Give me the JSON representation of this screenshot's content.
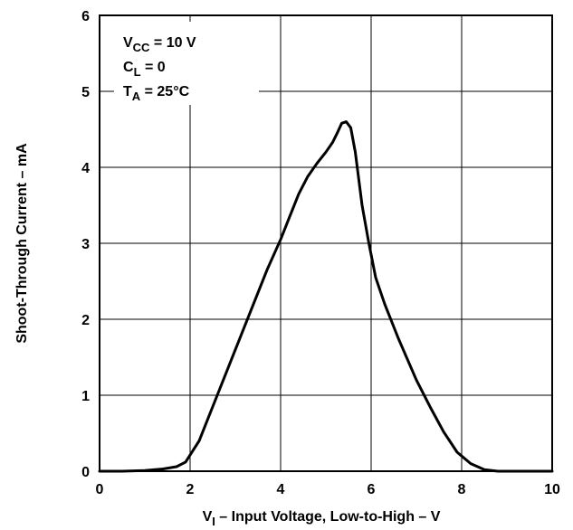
{
  "chart_data": {
    "type": "line",
    "title": "",
    "xlabel": {
      "prefix": "V",
      "sub": "I",
      "rest": " – Input Voltage, Low-to-High – V"
    },
    "ylabel": "Shoot-Through Current – mA",
    "xlim": [
      0,
      10
    ],
    "ylim": [
      0,
      6
    ],
    "xticks": [
      "0",
      "2",
      "4",
      "6",
      "8",
      "10"
    ],
    "yticks": [
      "0",
      "1",
      "2",
      "3",
      "4",
      "5",
      "6"
    ],
    "grid": true,
    "annotations": [
      {
        "main": "V",
        "sub": "CC",
        "rest": " = 10 V"
      },
      {
        "main": "C",
        "sub": "L",
        "rest": " = 0"
      },
      {
        "main": "T",
        "sub": "A",
        "rest": " = 25°C"
      }
    ],
    "series": [
      {
        "x": [
          0,
          0.5,
          1.0,
          1.4,
          1.7,
          1.9,
          2.2,
          2.6,
          3.0,
          3.4,
          3.7,
          4.0,
          4.2,
          4.4,
          4.6,
          4.8,
          5.0,
          5.15,
          5.25,
          5.35,
          5.45,
          5.55,
          5.65,
          5.8,
          5.95,
          6.1,
          6.3,
          6.6,
          7.0,
          7.3,
          7.6,
          7.9,
          8.2,
          8.5,
          8.8,
          9.2,
          10
        ],
        "y": [
          0,
          0,
          0.01,
          0.03,
          0.06,
          0.12,
          0.4,
          1.0,
          1.6,
          2.2,
          2.65,
          3.05,
          3.35,
          3.65,
          3.88,
          4.05,
          4.2,
          4.33,
          4.45,
          4.58,
          4.6,
          4.52,
          4.2,
          3.5,
          3.0,
          2.55,
          2.2,
          1.75,
          1.2,
          0.85,
          0.52,
          0.25,
          0.1,
          0.02,
          0,
          0,
          0
        ]
      }
    ]
  }
}
